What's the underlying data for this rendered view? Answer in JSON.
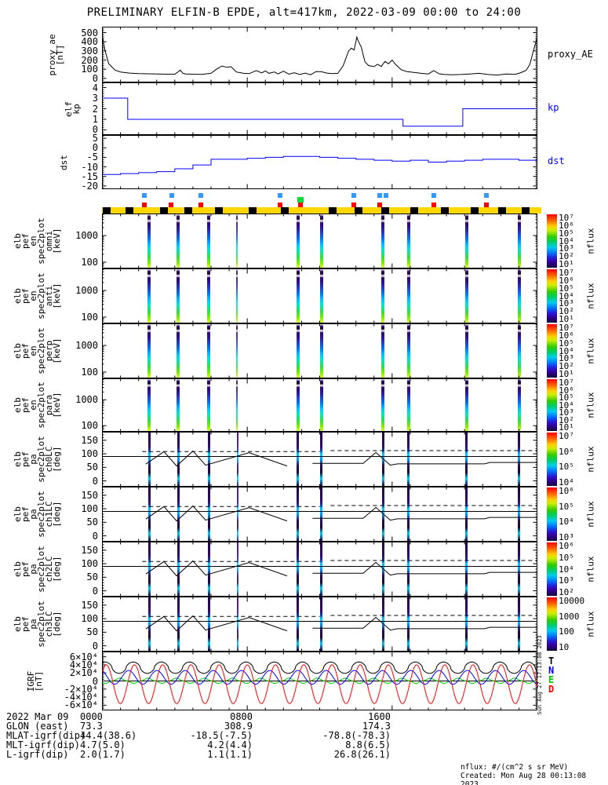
{
  "title": "PRELIMINARY ELFIN-B EPDE, alt=417km, 2022-03-09 00:00 to 24:00",
  "colors": {
    "frame": "#000000",
    "line_black": "#000000",
    "line_blue": "#0000ff",
    "igrf_t": "#000000",
    "igrf_n": "#0000ff",
    "igrf_e": "#00cc00",
    "igrf_d": "#ff0000",
    "marker_blue": "#3399ff",
    "marker_red": "#ff0000",
    "marker_green": "#00dd33",
    "mode_bar_yellow": "#ffd700",
    "mode_bar_black": "#000000"
  },
  "left_labels": {
    "proxy": "proxy_ae\n[nT]",
    "kp": "elf\nkp",
    "dst": "dst",
    "s0": "elb\npef\nen\nspec2plot\nomni\n[keV]",
    "s1": "elb\npef\nen\nspec2plot\nanti\n[keV]",
    "s2": "elb\npef\nen\nspec2plot\nperp\n[keV]",
    "s3": "elb\npef\nen\nspec2plot\npara\n[keV]",
    "p0": "elb\npef\npa\nspec2plot\nch0LC\n[deg]",
    "p1": "elb\npef\npa\nspec2plot\nch1LC\n[deg]",
    "p2": "elb\npef\npa\nspec2plot\nch2LC\n[deg]",
    "p3": "elb\npef\npa\nspec2plot\nch3LC\n[deg]",
    "igrf": "IGRF\n[nT]"
  },
  "right_labels": {
    "proxy": "proxy_AE",
    "kp": "kp",
    "dst": "dst"
  },
  "igrf_legend": {
    "t": "T",
    "n": "N",
    "e": "E",
    "d": "D"
  },
  "axis_ticks": {
    "proxy": {
      "labels": [
        "500",
        "400",
        "300",
        "200",
        "100",
        "0"
      ],
      "values": [
        500,
        400,
        300,
        200,
        100,
        0
      ]
    },
    "kp": {
      "labels": [
        "4",
        "3",
        "2",
        "1",
        "0"
      ],
      "values": [
        4,
        3,
        2,
        1,
        0
      ]
    },
    "dst": {
      "labels": [
        "5",
        "0",
        "-5",
        "-10",
        "-15",
        "-20"
      ],
      "values": [
        5,
        0,
        -5,
        -10,
        -15,
        -20
      ]
    },
    "energy": {
      "labels": [
        "1000",
        "100"
      ],
      "values": [
        1000,
        100
      ]
    },
    "pitch": {
      "labels": [
        "150",
        "100",
        "50",
        "0"
      ],
      "values": [
        150,
        100,
        50,
        0
      ]
    },
    "igrf": {
      "labels": [
        "6×10⁴",
        "4×10⁴",
        "2×10⁴",
        "0",
        "-2×10⁴",
        "-4×10⁴",
        "-6×10⁴"
      ],
      "values": [
        60000,
        40000,
        20000,
        0,
        -20000,
        -40000,
        -60000
      ]
    }
  },
  "colorbar": {
    "unit": "nflux",
    "energy": [
      "10⁷",
      "10⁶",
      "10⁵",
      "10⁴",
      "10³",
      "10²",
      "10¹"
    ],
    "ch0": [
      "10⁷",
      "10⁶",
      "10⁵",
      "10⁴"
    ],
    "ch1": [
      "10⁶",
      "10⁵",
      "10⁴",
      "10³"
    ],
    "ch2": [
      "10⁶",
      "10⁵",
      "10⁴",
      "10³",
      "10²"
    ],
    "ch3": [
      "10000",
      "1000",
      "100",
      "10"
    ]
  },
  "bottom_axis": {
    "row_labels": [
      "2022 Mar 09",
      "GLON (east)",
      "MLAT-igrf(dip)",
      "MLT-igrf(dip)",
      "L-igrf(dip)"
    ],
    "rows": [
      [
        "0000",
        "0800",
        "1600"
      ],
      [
        "73.3",
        "308.9",
        "174.3"
      ],
      [
        "44.4(38.6)",
        "-18.5(-7.5)",
        "-78.8(-78.3)"
      ],
      [
        "4.7(5.0)",
        "4.2(4.4)",
        "8.8(6.5)"
      ],
      [
        "2.0(1.7)",
        "1.1(1.1)",
        "26.8(26.1)"
      ]
    ]
  },
  "footer": {
    "units": "nflux: #/(cm^2 s sr MeV)",
    "created": "Created: Mon Aug 28 00:13:08 2023"
  },
  "side_note": "Sun Aug 27 17:13:08 2023",
  "chart_data": {
    "type": "multi-panel time series with spectrograms",
    "time_range_hours": [
      0,
      24
    ],
    "time_tick_labels": [
      "0000",
      "0800",
      "1600"
    ],
    "proxy_ae": {
      "type": "line",
      "ylabel": "proxy_ae [nT]",
      "ylim": [
        -40,
        560
      ],
      "points": [
        [
          0,
          455
        ],
        [
          0.15,
          300
        ],
        [
          0.35,
          160
        ],
        [
          0.7,
          90
        ],
        [
          1,
          70
        ],
        [
          1.5,
          58
        ],
        [
          2,
          52
        ],
        [
          2.5,
          50
        ],
        [
          3,
          48
        ],
        [
          3.5,
          46
        ],
        [
          4,
          45
        ],
        [
          4.3,
          90
        ],
        [
          4.45,
          55
        ],
        [
          4.6,
          48
        ],
        [
          5,
          45
        ],
        [
          5.5,
          44
        ],
        [
          6,
          55
        ],
        [
          6.3,
          100
        ],
        [
          6.6,
          135
        ],
        [
          6.9,
          120
        ],
        [
          7.1,
          128
        ],
        [
          7.4,
          70
        ],
        [
          7.8,
          55
        ],
        [
          8.1,
          52
        ],
        [
          8.5,
          85
        ],
        [
          8.8,
          60
        ],
        [
          9,
          82
        ],
        [
          9.2,
          55
        ],
        [
          9.5,
          70
        ],
        [
          9.7,
          48
        ],
        [
          10,
          78
        ],
        [
          10.3,
          46
        ],
        [
          10.6,
          62
        ],
        [
          10.9,
          42
        ],
        [
          11.2,
          58
        ],
        [
          11.5,
          40
        ],
        [
          11.8,
          75
        ],
        [
          12.1,
          72
        ],
        [
          12.4,
          58
        ],
        [
          12.7,
          52
        ],
        [
          13,
          55
        ],
        [
          13.3,
          140
        ],
        [
          13.6,
          300
        ],
        [
          13.75,
          330
        ],
        [
          13.9,
          310
        ],
        [
          14.05,
          450
        ],
        [
          14.15,
          400
        ],
        [
          14.3,
          340
        ],
        [
          14.5,
          180
        ],
        [
          14.7,
          140
        ],
        [
          15,
          128
        ],
        [
          15.2,
          155
        ],
        [
          15.4,
          130
        ],
        [
          15.6,
          185
        ],
        [
          15.8,
          160
        ],
        [
          16,
          200
        ],
        [
          16.2,
          150
        ],
        [
          16.5,
          95
        ],
        [
          16.8,
          75
        ],
        [
          17.2,
          65
        ],
        [
          17.6,
          55
        ],
        [
          18,
          48
        ],
        [
          18.3,
          85
        ],
        [
          18.6,
          50
        ],
        [
          18.9,
          42
        ],
        [
          19.3,
          40
        ],
        [
          19.8,
          42
        ],
        [
          20.3,
          48
        ],
        [
          20.8,
          55
        ],
        [
          21.3,
          42
        ],
        [
          21.8,
          36
        ],
        [
          22.3,
          48
        ],
        [
          22.8,
          44
        ],
        [
          23.1,
          62
        ],
        [
          23.4,
          88
        ],
        [
          23.6,
          150
        ],
        [
          23.8,
          300
        ],
        [
          24,
          440
        ]
      ]
    },
    "kp": {
      "type": "step",
      "ylabel": "elf kp",
      "ylim": [
        -0.45,
        4.45
      ],
      "points": [
        [
          0,
          3
        ],
        [
          1.4,
          3
        ],
        [
          1.4,
          1
        ],
        [
          16.6,
          1
        ],
        [
          16.6,
          0.35
        ],
        [
          19.9,
          0.35
        ],
        [
          19.9,
          2
        ],
        [
          24,
          2
        ]
      ]
    },
    "dst": {
      "type": "step",
      "ylabel": "dst",
      "ylim": [
        -21.5,
        6.5
      ],
      "hourly": [
        -14,
        -13.5,
        -13,
        -12.5,
        -11,
        -9,
        -6,
        -6,
        -5.5,
        -5,
        -4.5,
        -4.5,
        -5,
        -5.5,
        -6,
        -6.5,
        -7,
        -6.5,
        -7.5,
        -7,
        -6.5,
        -6,
        -6,
        -6.5,
        -6
      ]
    },
    "science_zones": {
      "stripe_times_hours": [
        2.6,
        4.2,
        5.9,
        7.5,
        10.8,
        12.1,
        15.5,
        16.9,
        20.1,
        23.0
      ],
      "weak": [
        7.5
      ]
    },
    "markers": {
      "blue_hours": [
        2.35,
        3.85,
        5.45,
        9.8,
        13.9,
        15.3,
        15.65,
        18.3,
        21.2
      ],
      "red_hours": [
        2.35,
        3.8,
        5.45,
        9.8,
        10.95,
        13.9,
        15.3,
        18.3,
        21.2
      ],
      "green_hours": [
        10.95
      ]
    },
    "mode_bar": {
      "black_block_fracs": [
        0.002,
        0.055,
        0.135,
        0.19,
        0.262,
        0.34,
        0.415,
        0.525,
        0.585,
        0.648,
        0.715,
        0.785,
        0.855,
        0.918,
        0.972
      ]
    },
    "energy_axis": {
      "log": true,
      "ylim_kev": [
        60,
        6500
      ]
    },
    "pitch_axis": {
      "ylim_deg": [
        -20,
        180
      ],
      "mirror_deg": 90,
      "losscone": [
        [
          [
            2.4,
            62
          ],
          [
            3.4,
            108
          ],
          [
            4.1,
            55
          ],
          [
            5.0,
            110
          ],
          [
            5.7,
            58
          ],
          [
            8.1,
            104
          ],
          [
            10.2,
            55
          ]
        ],
        [
          [
            11.6,
            65
          ],
          [
            14.4,
            65
          ],
          [
            15.1,
            105
          ],
          [
            15.9,
            58
          ],
          [
            16.3,
            63
          ],
          [
            21.1,
            63
          ],
          [
            21.4,
            68
          ],
          [
            24,
            68
          ]
        ]
      ],
      "antilosscone_dashed": [
        [
          [
            2.2,
            108
          ],
          [
            12.0,
            108
          ]
        ],
        [
          [
            12.6,
            112
          ],
          [
            24,
            112
          ]
        ]
      ]
    },
    "igrf": {
      "ylim": [
        -72000,
        72000
      ],
      "period_hours": 1.558,
      "series": [
        {
          "name": "E",
          "color_key": "igrf_e",
          "offset": 500,
          "amp": 6500,
          "pow": 2,
          "phase": 4.0
        },
        {
          "name": "N",
          "color_key": "igrf_n",
          "offset": 9000,
          "amp": 17000,
          "pow": 1,
          "phase": 2.0
        },
        {
          "name": "D",
          "color_key": "igrf_d",
          "offset": -8000,
          "amp": 48000,
          "pow": 1,
          "phase": 0.7
        },
        {
          "name": "T",
          "color_key": "igrf_t",
          "offset": 33000,
          "amp": 14000,
          "pow": 0.6,
          "phase": 1.0
        }
      ]
    }
  }
}
